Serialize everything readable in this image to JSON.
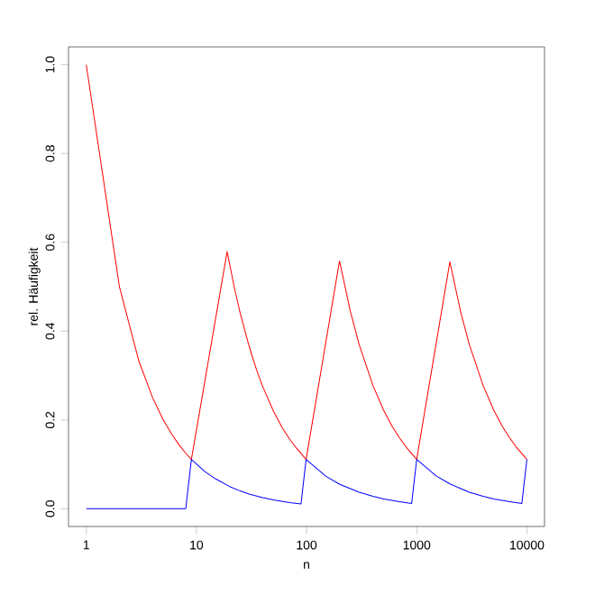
{
  "chart_data": {
    "type": "line",
    "xlabel": "n",
    "ylabel": "rel. Häufigkeit",
    "log": "x",
    "xlim": [
      0.69,
      14450
    ],
    "ylim": [
      -0.04,
      1.04
    ],
    "xticks": [
      1,
      10,
      100,
      1000,
      10000
    ],
    "yticks": [
      {
        "value": 0,
        "label": "0.0"
      },
      {
        "value": 0.2,
        "label": "0.2"
      },
      {
        "value": 0.4,
        "label": "0.4"
      },
      {
        "value": 0.6,
        "label": "0.6"
      },
      {
        "value": 0.8,
        "label": "0.8"
      },
      {
        "value": 1,
        "label": "1.0"
      }
    ],
    "series": [
      {
        "color": "#ff0000",
        "x": [
          1,
          2,
          3,
          4,
          5,
          6,
          7,
          8,
          9,
          19,
          22,
          25,
          30,
          35,
          40,
          50,
          60,
          70,
          80,
          99,
          199,
          250,
          300,
          400,
          500,
          600,
          700,
          800,
          999,
          1999,
          2500,
          3000,
          4000,
          5000,
          6000,
          7000,
          8000,
          9999,
          10000
        ],
        "values": [
          1,
          0.5,
          0.333,
          0.25,
          0.2,
          0.167,
          0.143,
          0.125,
          0.111,
          0.579,
          0.5,
          0.44,
          0.367,
          0.314,
          0.275,
          0.22,
          0.183,
          0.157,
          0.138,
          0.111,
          0.558,
          0.444,
          0.37,
          0.278,
          0.222,
          0.185,
          0.159,
          0.139,
          0.111,
          0.556,
          0.444,
          0.37,
          0.278,
          0.222,
          0.185,
          0.159,
          0.139,
          0.111,
          0.111
        ]
      },
      {
        "color": "#0000ff",
        "x": [
          1,
          8,
          9,
          12,
          15,
          20,
          25,
          30,
          40,
          50,
          70,
          89,
          99,
          150,
          200,
          300,
          400,
          500,
          700,
          899,
          999,
          1500,
          2000,
          3000,
          4000,
          5000,
          7000,
          8999,
          9999,
          10000
        ],
        "values": [
          0,
          0,
          0.111,
          0.083,
          0.067,
          0.05,
          0.04,
          0.033,
          0.025,
          0.02,
          0.014,
          0.011,
          0.111,
          0.073,
          0.055,
          0.037,
          0.028,
          0.022,
          0.016,
          0.012,
          0.111,
          0.074,
          0.056,
          0.037,
          0.028,
          0.022,
          0.016,
          0.012,
          0.111,
          0.111
        ]
      }
    ]
  }
}
